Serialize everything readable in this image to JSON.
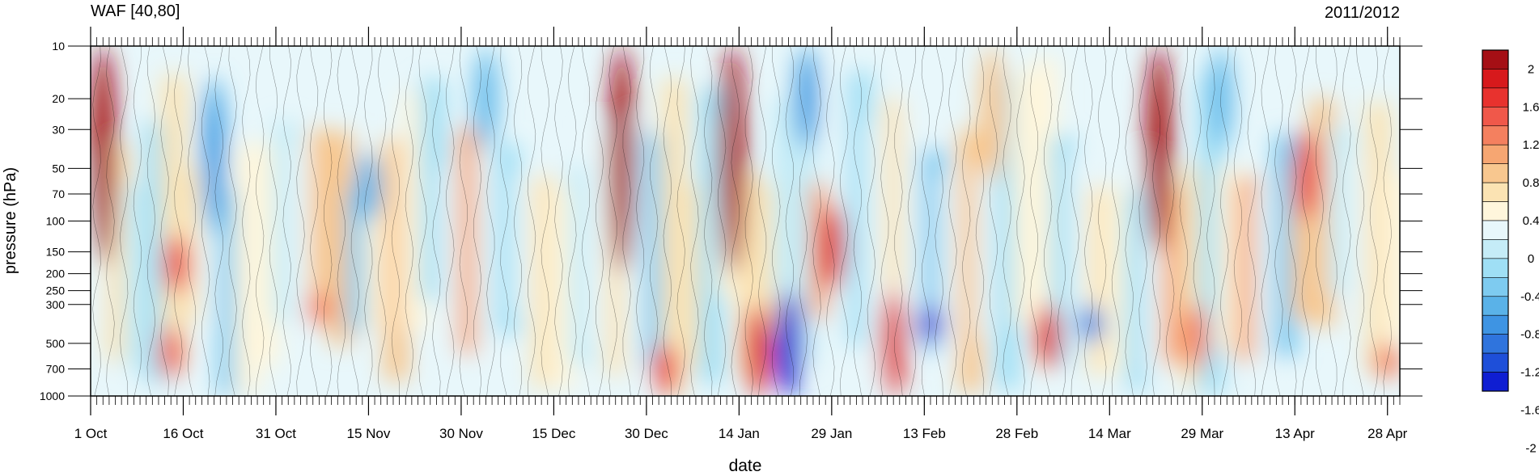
{
  "chart_data": {
    "type": "heatmap",
    "title_left": "WAF [40,80]",
    "title_right": "2011/2012",
    "xlabel": "date",
    "ylabel": "pressure (hPa)",
    "x_ticks": [
      "1 Oct",
      "16 Oct",
      "31 Oct",
      "15 Nov",
      "30 Nov",
      "15 Dec",
      "30 Dec",
      "14 Jan",
      "29 Jan",
      "13 Feb",
      "28 Feb",
      "14 Mar",
      "29 Mar",
      "13 Apr",
      "28 Apr"
    ],
    "x_range_days": [
      0,
      212
    ],
    "y_ticks": [
      "10",
      "20",
      "30",
      "50",
      "70",
      "100",
      "150",
      "200",
      "250",
      "300",
      "500",
      "700",
      "1000"
    ],
    "y_values": [
      10,
      20,
      30,
      50,
      70,
      100,
      150,
      200,
      250,
      300,
      500,
      700,
      1000
    ],
    "y_scale": "log",
    "y_range": [
      1000,
      10
    ],
    "colorbar": {
      "labels": [
        "2",
        "1.6",
        "1.2",
        "0.8",
        "0.4",
        "0",
        "-0.4",
        "-0.8",
        "-1.2",
        "-1.6",
        "-2"
      ],
      "colors": [
        "#a50f15",
        "#d7191c",
        "#e8322e",
        "#f0584a",
        "#f4805f",
        "#f6a672",
        "#f8c78f",
        "#fbe3b3",
        "#fff6dc",
        "#e8f7fb",
        "#c5ecf7",
        "#9fdff5",
        "#7ecbf0",
        "#5ab2e8",
        "#3e94e3",
        "#2f74dd",
        "#1e4fd9",
        "#0f1ed2"
      ],
      "placement": "right"
    },
    "anomaly_features": [
      {
        "day": 2,
        "pmin": 10,
        "pmax": 180,
        "value": 2.2
      },
      {
        "day": 14,
        "pmin": 120,
        "pmax": 260,
        "value": 1.4
      },
      {
        "day": 13,
        "pmin": 400,
        "pmax": 800,
        "value": 1.2
      },
      {
        "day": 20,
        "pmin": 15,
        "pmax": 120,
        "value": -1.2
      },
      {
        "day": 37,
        "pmin": 250,
        "pmax": 400,
        "value": 1.0
      },
      {
        "day": 45,
        "pmin": 40,
        "pmax": 100,
        "value": -1.0
      },
      {
        "day": 64,
        "pmin": 10,
        "pmax": 40,
        "value": -0.9
      },
      {
        "day": 86,
        "pmin": 10,
        "pmax": 200,
        "value": 2.1
      },
      {
        "day": 93,
        "pmin": 500,
        "pmax": 1000,
        "value": 1.4
      },
      {
        "day": 104,
        "pmin": 10,
        "pmax": 200,
        "value": 2.0
      },
      {
        "day": 113,
        "pmin": 250,
        "pmax": 1000,
        "value": -2.0
      },
      {
        "day": 108,
        "pmin": 300,
        "pmax": 1000,
        "value": 1.6
      },
      {
        "day": 120,
        "pmin": 80,
        "pmax": 250,
        "value": 1.6
      },
      {
        "day": 116,
        "pmin": 10,
        "pmax": 40,
        "value": -1.2
      },
      {
        "day": 130,
        "pmin": 250,
        "pmax": 1000,
        "value": 1.5
      },
      {
        "day": 136,
        "pmin": 300,
        "pmax": 500,
        "value": -1.8
      },
      {
        "day": 146,
        "pmin": 10,
        "pmax": 60,
        "value": 0.6
      },
      {
        "day": 155,
        "pmin": 300,
        "pmax": 700,
        "value": 1.5
      },
      {
        "day": 162,
        "pmin": 300,
        "pmax": 500,
        "value": -1.4
      },
      {
        "day": 173,
        "pmin": 10,
        "pmax": 150,
        "value": 2.1
      },
      {
        "day": 179,
        "pmin": 300,
        "pmax": 700,
        "value": 1.0
      },
      {
        "day": 183,
        "pmin": 10,
        "pmax": 40,
        "value": -0.9
      },
      {
        "day": 197,
        "pmin": 30,
        "pmax": 100,
        "value": 1.4
      },
      {
        "day": 210,
        "pmin": 500,
        "pmax": 800,
        "value": 1.0
      }
    ]
  }
}
